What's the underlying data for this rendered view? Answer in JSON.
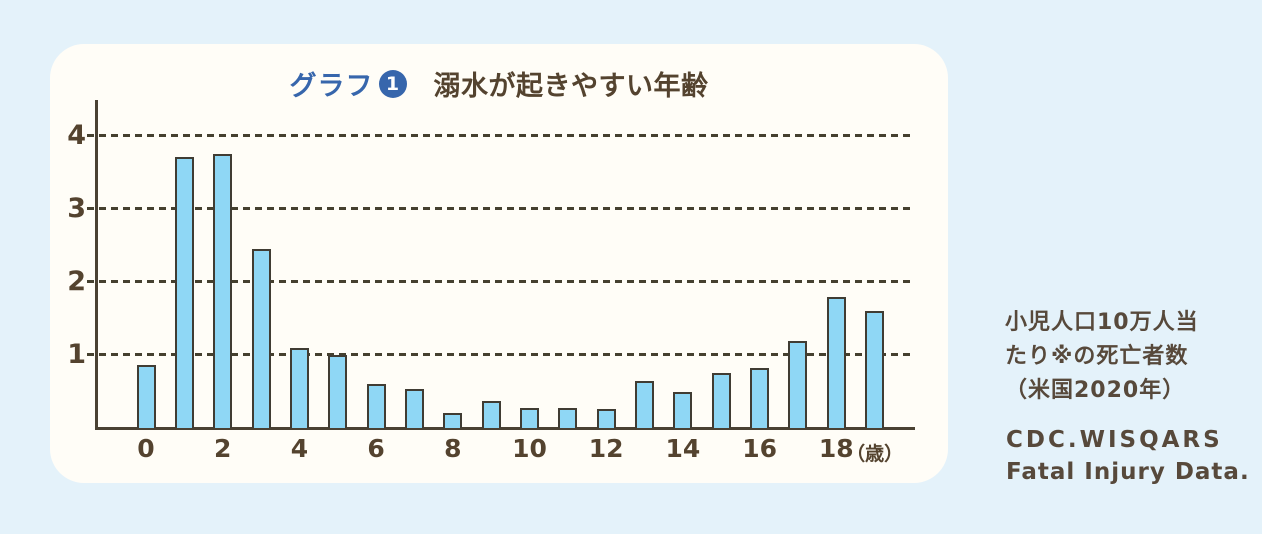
{
  "page": {
    "background_color": "#e4f2fa",
    "card_color": "#fffdf7"
  },
  "header": {
    "title_prefix": "グラフ",
    "badge_number": "1",
    "title": "溺水が起きやすい年齢",
    "title_prefix_color": "#3766ac",
    "title_color": "#54432f"
  },
  "chart_data": {
    "type": "bar",
    "title": "グラフ❶ 溺水が起きやすい年齢",
    "x": [
      0,
      1,
      2,
      3,
      4,
      5,
      6,
      7,
      8,
      9,
      10,
      11,
      12,
      13,
      14,
      15,
      16,
      17,
      18,
      19
    ],
    "values": [
      0.87,
      3.72,
      3.76,
      2.45,
      1.1,
      1.0,
      0.6,
      0.53,
      0.21,
      0.37,
      0.27,
      0.27,
      0.26,
      0.64,
      0.5,
      0.75,
      0.82,
      1.19,
      1.8,
      1.6
    ],
    "xlabel": "（歳）",
    "ylabel": "",
    "ylim": [
      0,
      4.5
    ],
    "yticks": [
      1,
      2,
      3,
      4
    ],
    "xticks": [
      0,
      2,
      4,
      6,
      8,
      10,
      12,
      14,
      16,
      18
    ],
    "grid": "horizontal-dashed",
    "legend": "none",
    "bar_color": "#8fd7f5",
    "bar_border_color": "#403c33",
    "axis_color": "#4a4133"
  },
  "sidenote": {
    "lines": [
      "小児人口10万人当",
      "たり※の死亡者数",
      "（米国2020年）"
    ]
  },
  "source": {
    "lines": [
      "CDC.WISQARS",
      "Fatal Injury Data."
    ]
  }
}
